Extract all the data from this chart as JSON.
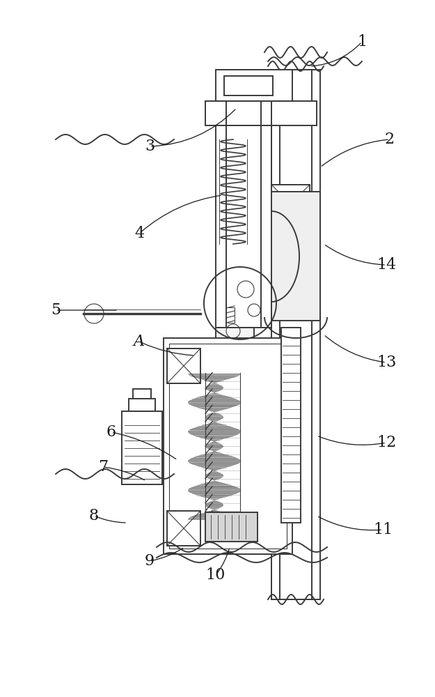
{
  "bg_color": "#ffffff",
  "lc": "#3a3a3a",
  "lw": 1.4,
  "tlw": 0.8,
  "figsize": [
    6.25,
    10.0
  ],
  "dpi": 100,
  "label_fs": 16,
  "label_color": "#1a1a1a"
}
